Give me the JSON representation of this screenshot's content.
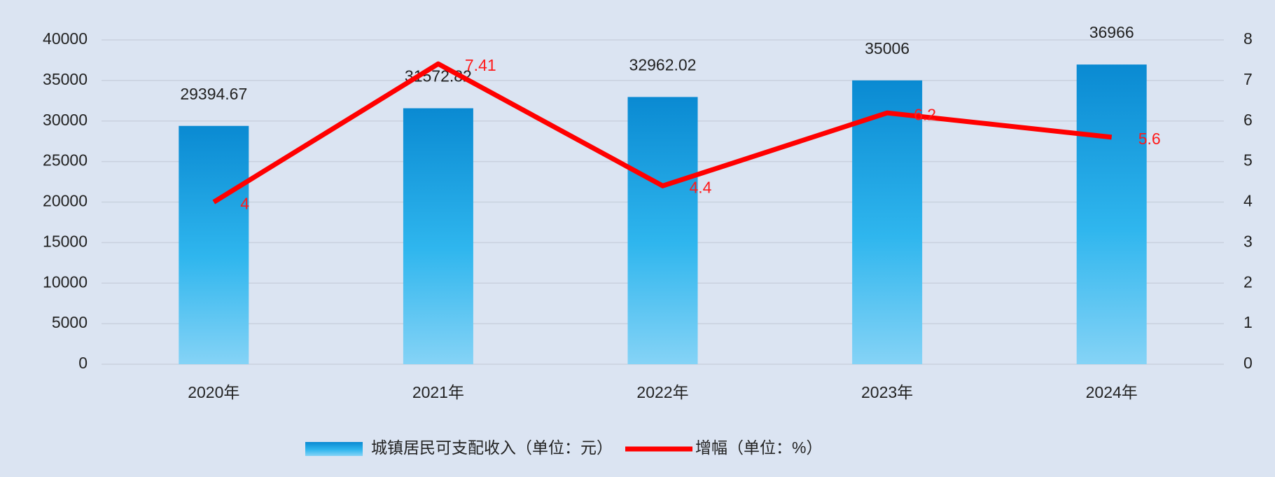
{
  "chart_data": {
    "type": "bar-line",
    "categories": [
      "2020年",
      "2021年",
      "2022年",
      "2023年",
      "2024年"
    ],
    "series": [
      {
        "name": "城镇居民可支配收入（单位：元）",
        "type": "bar",
        "color": "#0a8ad2",
        "values": [
          29394.67,
          31572.82,
          32962.02,
          35006,
          36966
        ]
      },
      {
        "name": "增幅（单位：%）",
        "type": "line",
        "axis": "y2",
        "color": "#ff0000",
        "values": [
          4,
          7.41,
          4.4,
          6.2,
          5.6
        ]
      }
    ],
    "ylim": [
      0,
      40000
    ],
    "yticks": [
      0,
      5000,
      10000,
      15000,
      20000,
      25000,
      30000,
      35000,
      40000
    ],
    "y2lim": [
      0,
      8
    ],
    "y2ticks": [
      0,
      1,
      2,
      3,
      4,
      5,
      6,
      7,
      8
    ],
    "grid": true,
    "legend": "bottom"
  }
}
